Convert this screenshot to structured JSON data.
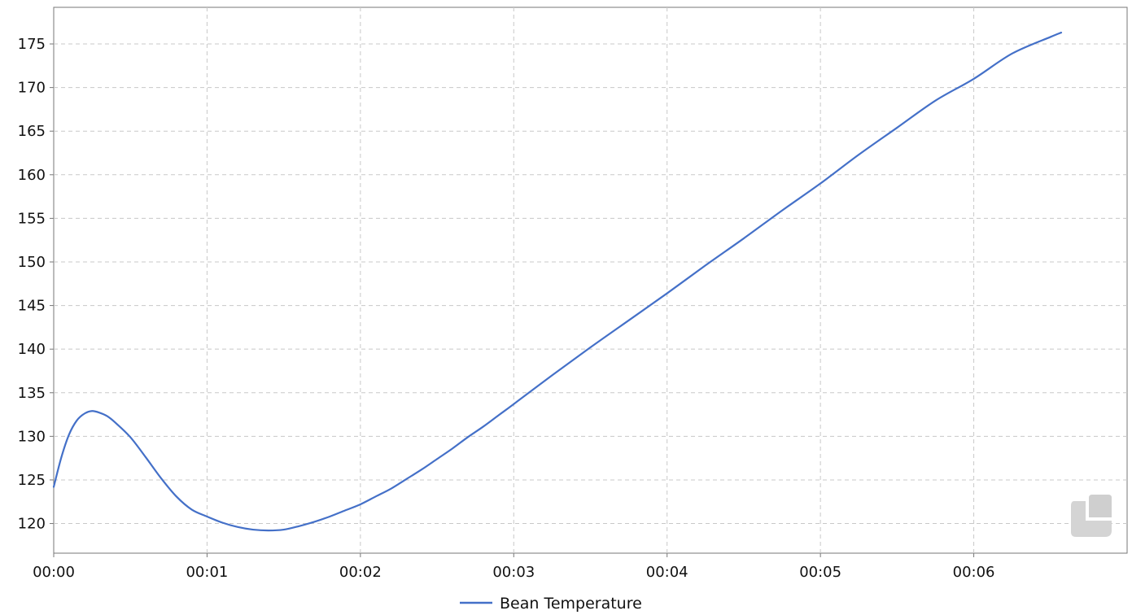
{
  "chart_data": {
    "type": "line",
    "title": "",
    "xlabel": "",
    "ylabel": "",
    "x_unit": "minutes",
    "xlim": [
      0,
      7
    ],
    "ylim": [
      116.6,
      179.2
    ],
    "x_ticks": [
      0,
      1,
      2,
      3,
      4,
      5,
      6
    ],
    "x_tick_labels": [
      "00:00",
      "00:01",
      "00:02",
      "00:03",
      "00:04",
      "00:05",
      "00:06"
    ],
    "y_ticks": [
      120,
      125,
      130,
      135,
      140,
      145,
      150,
      155,
      160,
      165,
      170,
      175
    ],
    "y_tick_labels": [
      "120",
      "125",
      "130",
      "135",
      "140",
      "145",
      "150",
      "155",
      "160",
      "165",
      "170",
      "175"
    ],
    "grid": true,
    "legend_position": "bottom-center",
    "series": [
      {
        "name": "Bean Temperature",
        "color": "#4470c8",
        "x": [
          0,
          0.05,
          0.1,
          0.15,
          0.2,
          0.25,
          0.3,
          0.35,
          0.4,
          0.5,
          0.6,
          0.7,
          0.8,
          0.9,
          1.0,
          1.1,
          1.2,
          1.3,
          1.4,
          1.5,
          1.6,
          1.7,
          1.8,
          1.9,
          2.0,
          2.1,
          2.2,
          2.3,
          2.4,
          2.5,
          2.6,
          2.7,
          2.8,
          2.9,
          3.0,
          3.25,
          3.5,
          3.75,
          4.0,
          4.25,
          4.5,
          4.75,
          5.0,
          5.25,
          5.5,
          5.75,
          6.0,
          6.25,
          6.5,
          6.57
        ],
        "values": [
          124.2,
          127.6,
          130.2,
          131.8,
          132.6,
          132.9,
          132.7,
          132.3,
          131.6,
          129.9,
          127.6,
          125.2,
          123.1,
          121.6,
          120.8,
          120.1,
          119.6,
          119.3,
          119.2,
          119.3,
          119.7,
          120.2,
          120.8,
          121.5,
          122.2,
          123.1,
          124.0,
          125.1,
          126.2,
          127.4,
          128.6,
          129.9,
          131.1,
          132.4,
          133.7,
          137.0,
          140.2,
          143.3,
          146.4,
          149.6,
          152.7,
          155.9,
          159.0,
          162.3,
          165.4,
          168.5,
          171.0,
          173.9,
          175.8,
          176.3
        ]
      }
    ]
  }
}
